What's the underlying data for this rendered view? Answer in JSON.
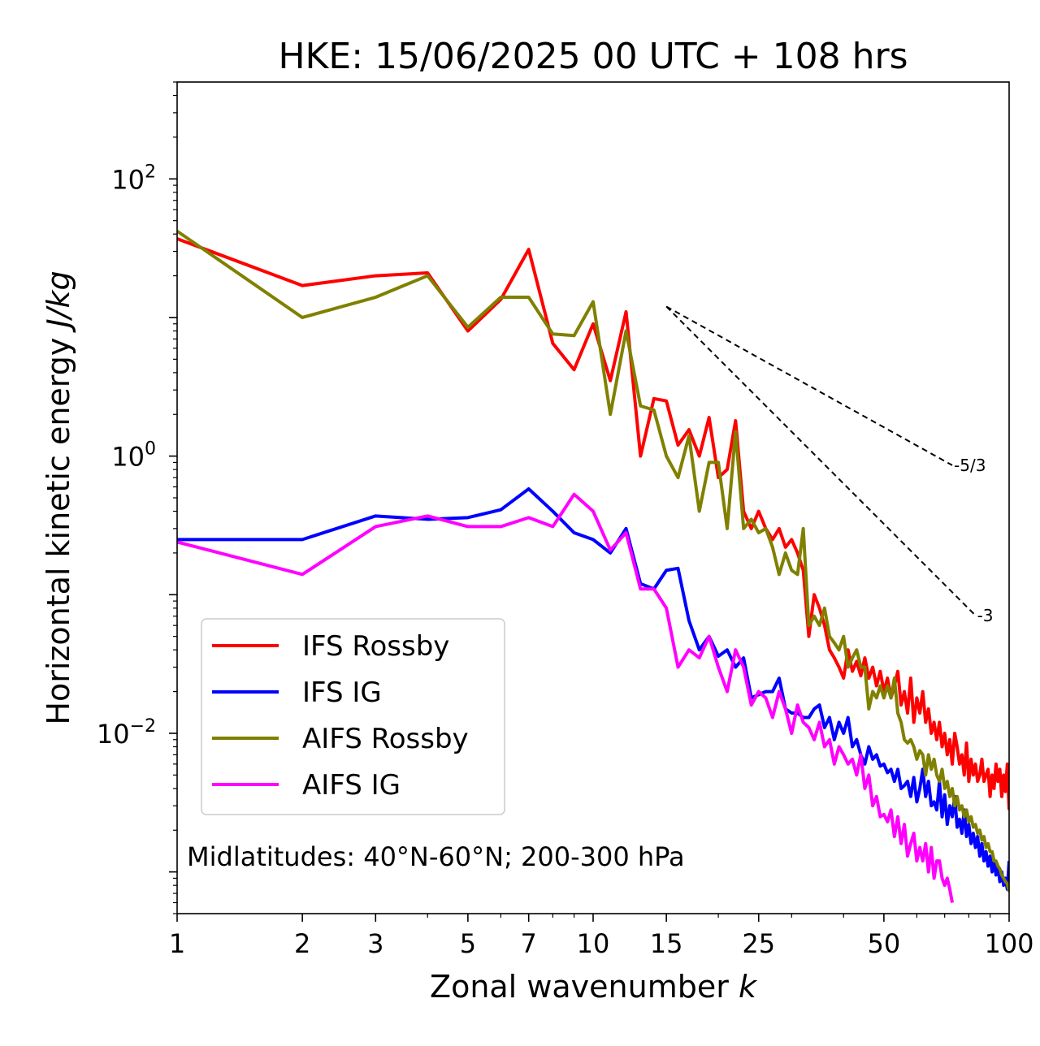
{
  "chart_data": {
    "type": "line",
    "title": "HKE: 15/06/2025 00 UTC + 108 hrs",
    "xlabel_text": "Zonal wavenumber ",
    "xlabel_var": "k",
    "ylabel_text": "Horizontal kinetic energy ",
    "ylabel_unit": "J/kg",
    "x_scale": "log",
    "y_scale": "log",
    "xlim": [
      1,
      100
    ],
    "ylim": [
      0.0005,
      500
    ],
    "x_ticks": [
      1,
      2,
      3,
      5,
      7,
      10,
      15,
      25,
      50,
      100
    ],
    "x_tick_labels": [
      "1",
      "2",
      "3",
      "5",
      "7",
      "10",
      "15",
      "25",
      "50",
      "100"
    ],
    "y_ticks": [
      100,
      1,
      0.01
    ],
    "y_tick_labels": [
      {
        "base": "10",
        "exp": "2"
      },
      {
        "base": "10",
        "exp": "0"
      },
      {
        "base": "10",
        "exp": "−2"
      }
    ],
    "grid": false,
    "legend_position": "lower-left",
    "annotation": "Midlatitudes: 40°N-60°N; 200-300 hPa",
    "reference_slopes": [
      {
        "label": "-5/3",
        "exponent": -1.6667,
        "x_start": 15,
        "y_start": 12,
        "x_end": 73
      },
      {
        "label": "-3",
        "exponent": -3,
        "x_start": 15,
        "y_start": 12,
        "x_end": 83
      }
    ],
    "series": [
      {
        "name": "IFS Rossby",
        "color": "#ff0000",
        "x": [
          1,
          2,
          3,
          4,
          5,
          6,
          7,
          8,
          9,
          10,
          11,
          12,
          13,
          14,
          15,
          16,
          17,
          18,
          19,
          20,
          21,
          22,
          23,
          24,
          25,
          26,
          27,
          28,
          29,
          30,
          31,
          32,
          33,
          34,
          35,
          36,
          37,
          38,
          39,
          40,
          41,
          42,
          43,
          44,
          45,
          46,
          47,
          48,
          49,
          50,
          51,
          52,
          53,
          54,
          55,
          56,
          57,
          58,
          59,
          60,
          61,
          62,
          63,
          64,
          65,
          66,
          67,
          68,
          69,
          70,
          71,
          72,
          73,
          74,
          75,
          76,
          77,
          78,
          79,
          80,
          81,
          82,
          83,
          84,
          85,
          86,
          87,
          88,
          89,
          90,
          91,
          92,
          93,
          94,
          95,
          96,
          97,
          98,
          99,
          100
        ],
        "y": [
          37,
          17,
          20,
          21,
          8,
          13.5,
          31,
          6.5,
          4.2,
          9,
          3.5,
          11,
          1.0,
          2.6,
          2.5,
          1.2,
          1.55,
          1.0,
          1.9,
          0.7,
          0.8,
          1.8,
          0.4,
          0.3,
          0.4,
          0.3,
          0.25,
          0.3,
          0.22,
          0.25,
          0.2,
          0.15,
          0.05,
          0.1,
          0.08,
          0.06,
          0.04,
          0.035,
          0.03,
          0.025,
          0.04,
          0.028,
          0.033,
          0.026,
          0.035,
          0.025,
          0.03,
          0.022,
          0.028,
          0.02,
          0.025,
          0.018,
          0.022,
          0.028,
          0.016,
          0.02,
          0.014,
          0.025,
          0.012,
          0.018,
          0.014,
          0.02,
          0.012,
          0.015,
          0.01,
          0.012,
          0.009,
          0.012,
          0.008,
          0.01,
          0.007,
          0.009,
          0.006,
          0.01,
          0.008,
          0.006,
          0.007,
          0.005,
          0.0085,
          0.0045,
          0.0065,
          0.005,
          0.006,
          0.0045,
          0.005,
          0.0065,
          0.0045,
          0.005,
          0.0055,
          0.0035,
          0.005,
          0.004,
          0.006,
          0.0045,
          0.0055,
          0.0035,
          0.005,
          0.0038,
          0.006,
          0.0028
        ]
      },
      {
        "name": "IFS IG",
        "color": "#0000ff",
        "x": [
          1,
          2,
          3,
          4,
          5,
          6,
          7,
          8,
          9,
          10,
          11,
          12,
          13,
          14,
          15,
          16,
          17,
          18,
          19,
          20,
          21,
          22,
          23,
          24,
          25,
          26,
          27,
          28,
          29,
          30,
          31,
          32,
          33,
          34,
          35,
          36,
          37,
          38,
          39,
          40,
          41,
          42,
          43,
          44,
          45,
          46,
          47,
          48,
          49,
          50,
          51,
          52,
          53,
          54,
          55,
          56,
          57,
          58,
          59,
          60,
          61,
          62,
          63,
          64,
          65,
          66,
          67,
          68,
          69,
          70,
          71,
          72,
          73,
          74,
          75,
          76,
          77,
          78,
          79,
          80,
          81,
          82,
          83,
          84,
          85,
          86,
          87,
          88,
          89,
          90,
          91,
          92,
          93,
          94,
          95,
          96,
          97,
          98,
          99,
          100
        ],
        "y": [
          0.25,
          0.25,
          0.37,
          0.35,
          0.36,
          0.41,
          0.58,
          0.4,
          0.28,
          0.25,
          0.2,
          0.3,
          0.12,
          0.11,
          0.15,
          0.155,
          0.065,
          0.04,
          0.05,
          0.036,
          0.04,
          0.03,
          0.035,
          0.018,
          0.019,
          0.02,
          0.02,
          0.025,
          0.015,
          0.014,
          0.014,
          0.013,
          0.013,
          0.015,
          0.016,
          0.011,
          0.013,
          0.009,
          0.012,
          0.01,
          0.013,
          0.008,
          0.009,
          0.007,
          0.006,
          0.008,
          0.0065,
          0.007,
          0.0058,
          0.006,
          0.0052,
          0.0055,
          0.0045,
          0.0055,
          0.004,
          0.0042,
          0.0045,
          0.0035,
          0.0048,
          0.0032,
          0.004,
          0.0055,
          0.0035,
          0.0045,
          0.003,
          0.0032,
          0.0028,
          0.0045,
          0.0025,
          0.0036,
          0.0022,
          0.003,
          0.0025,
          0.0035,
          0.0021,
          0.0024,
          0.0019,
          0.0028,
          0.0018,
          0.0022,
          0.0016,
          0.0019,
          0.0015,
          0.0018,
          0.0013,
          0.0016,
          0.0012,
          0.0014,
          0.0011,
          0.0013,
          0.001,
          0.0012,
          0.00095,
          0.0011,
          0.00085,
          0.001,
          0.0008,
          0.0009,
          0.00075,
          0.0012
        ]
      },
      {
        "name": "AIFS Rossby",
        "color": "#808000",
        "x": [
          1,
          2,
          3,
          4,
          5,
          6,
          7,
          8,
          9,
          10,
          11,
          12,
          13,
          14,
          15,
          16,
          17,
          18,
          19,
          20,
          21,
          22,
          23,
          24,
          25,
          26,
          27,
          28,
          29,
          30,
          31,
          32,
          33,
          34,
          35,
          36,
          37,
          38,
          39,
          40,
          41,
          42,
          43,
          44,
          45,
          46,
          47,
          48,
          49,
          50,
          51,
          52,
          53,
          54,
          55,
          56,
          57,
          58,
          59,
          60,
          61,
          62,
          63,
          64,
          65,
          66,
          67,
          68,
          69,
          70,
          71,
          72,
          73,
          74,
          75,
          76,
          77,
          78,
          79,
          80,
          81,
          82,
          83,
          84,
          85,
          86,
          87,
          88,
          89,
          90,
          91,
          92,
          93,
          94,
          95,
          96,
          97,
          98,
          99,
          100
        ],
        "y": [
          42,
          10,
          14,
          20,
          8.5,
          14,
          14,
          7.6,
          7.4,
          13,
          2.0,
          8,
          2.3,
          2.15,
          1.0,
          0.7,
          1.4,
          0.4,
          0.9,
          0.9,
          0.3,
          1.5,
          0.3,
          0.35,
          0.28,
          0.3,
          0.22,
          0.14,
          0.2,
          0.15,
          0.14,
          0.3,
          0.06,
          0.07,
          0.06,
          0.08,
          0.05,
          0.045,
          0.04,
          0.05,
          0.03,
          0.035,
          0.04,
          0.03,
          0.03,
          0.015,
          0.02,
          0.018,
          0.022,
          0.018,
          0.022,
          0.018,
          0.025,
          0.014,
          0.012,
          0.009,
          0.0085,
          0.009,
          0.008,
          0.0065,
          0.0075,
          0.007,
          0.005,
          0.007,
          0.0055,
          0.0065,
          0.005,
          0.0045,
          0.0055,
          0.004,
          0.0045,
          0.0035,
          0.004,
          0.003,
          0.0035,
          0.0028,
          0.003,
          0.0025,
          0.0028,
          0.0023,
          0.0025,
          0.0021,
          0.0022,
          0.0019,
          0.002,
          0.0017,
          0.0018,
          0.0015,
          0.0016,
          0.0014,
          0.0014,
          0.0012,
          0.0012,
          0.0011,
          0.00105,
          0.00095,
          0.0009,
          0.00085,
          0.00082,
          0.00072
        ]
      },
      {
        "name": "AIFS IG",
        "color": "#ff00ff",
        "x": [
          1,
          2,
          3,
          4,
          5,
          6,
          7,
          8,
          9,
          10,
          11,
          12,
          13,
          14,
          15,
          16,
          17,
          18,
          19,
          20,
          21,
          22,
          23,
          24,
          25,
          26,
          27,
          28,
          29,
          30,
          31,
          32,
          33,
          34,
          35,
          36,
          37,
          38,
          39,
          40,
          41,
          42,
          43,
          44,
          45,
          46,
          47,
          48,
          49,
          50,
          51,
          52,
          53,
          54,
          55,
          56,
          57,
          58,
          59,
          60,
          61,
          62,
          63,
          64,
          65,
          66,
          67,
          68,
          69,
          70,
          71,
          72,
          73
        ],
        "y": [
          0.24,
          0.14,
          0.31,
          0.37,
          0.31,
          0.31,
          0.36,
          0.31,
          0.53,
          0.4,
          0.21,
          0.28,
          0.11,
          0.11,
          0.08,
          0.03,
          0.04,
          0.035,
          0.05,
          0.03,
          0.02,
          0.04,
          0.03,
          0.016,
          0.02,
          0.018,
          0.013,
          0.02,
          0.015,
          0.01,
          0.016,
          0.012,
          0.011,
          0.009,
          0.012,
          0.008,
          0.009,
          0.006,
          0.008,
          0.007,
          0.006,
          0.0065,
          0.005,
          0.007,
          0.004,
          0.005,
          0.003,
          0.0035,
          0.0025,
          0.0026,
          0.0023,
          0.0028,
          0.0018,
          0.0025,
          0.0016,
          0.0022,
          0.0013,
          0.0016,
          0.0019,
          0.0012,
          0.0015,
          0.0012,
          0.0016,
          0.001,
          0.0015,
          0.0009,
          0.0012,
          0.0012,
          0.0009,
          0.0008,
          0.0009,
          0.00075,
          0.0006
        ]
      }
    ]
  }
}
